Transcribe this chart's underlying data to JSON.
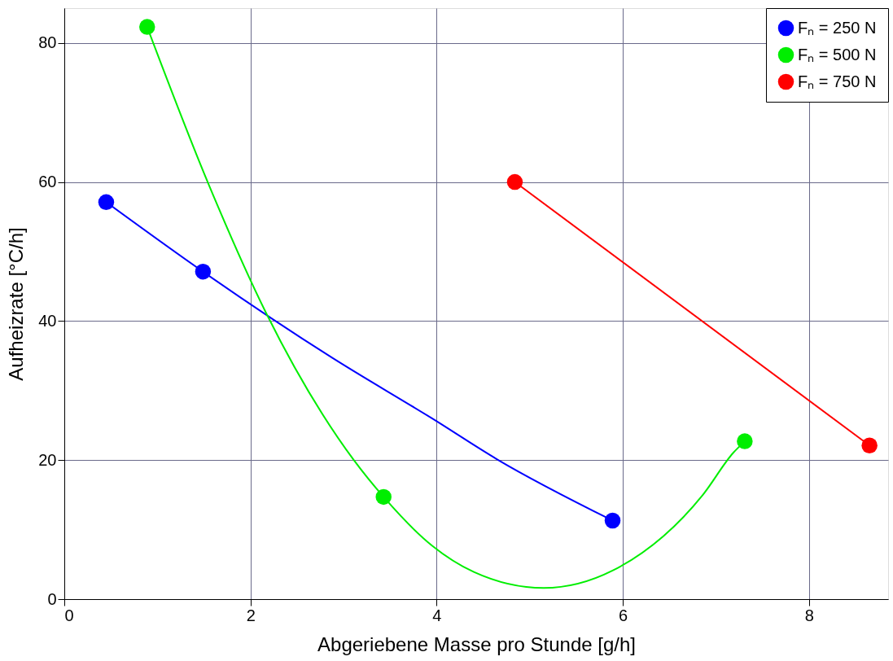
{
  "chart_data": {
    "type": "scatter",
    "xlabel": "Abgeriebene Masse pro Stunde [g/h]",
    "ylabel": "Aufheizrate [°C/h]",
    "xlim": [
      0,
      8.85
    ],
    "ylim": [
      0,
      85
    ],
    "xticks": [
      0,
      2,
      4,
      6,
      8
    ],
    "yticks": [
      0,
      20,
      40,
      60,
      80
    ],
    "grid": true,
    "legend": "top right",
    "marker": "circle",
    "series": [
      {
        "name": "Fₙ = 250 N",
        "color": "#0000ff",
        "x": [
          0.45,
          1.49,
          5.89
        ],
        "values": [
          57.1,
          47.1,
          11.3
        ]
      },
      {
        "name": "Fₙ = 500 N",
        "color": "#00ee00",
        "x": [
          0.89,
          3.43,
          7.31
        ],
        "values": [
          82.3,
          14.7,
          22.7
        ]
      },
      {
        "name": "Fₙ = 750 N",
        "color": "#ff0000",
        "x": [
          4.84,
          8.65
        ],
        "values": [
          60.0,
          22.1
        ]
      },
      {
        "type": "line",
        "color": "#0000ff",
        "line_style": "solid",
        "marker": "none",
        "x": [
          0.45,
          1.49,
          2.88,
          3.95,
          4.65,
          5.89
        ],
        "values": [
          57.1,
          47.1,
          34.7,
          26.0,
          20.1,
          11.3
        ]
      },
      {
        "type": "line",
        "color": "#00ee00",
        "line_style": "solid",
        "marker": "none",
        "x": [
          0.89,
          1.54,
          2.17,
          3.11,
          3.43,
          3.95,
          4.4,
          5.15,
          5.89,
          6.86,
          7.19,
          7.31
        ],
        "values": [
          82.3,
          60.0,
          41.1,
          20.0,
          14.7,
          7.7,
          3.9,
          1.6,
          4.1,
          15.0,
          21.1,
          22.7
        ]
      },
      {
        "type": "line",
        "color": "#ff0000",
        "line_style": "solid",
        "marker": "none",
        "x": [
          4.84,
          8.65
        ],
        "values": [
          60.0,
          22.1
        ]
      }
    ]
  }
}
